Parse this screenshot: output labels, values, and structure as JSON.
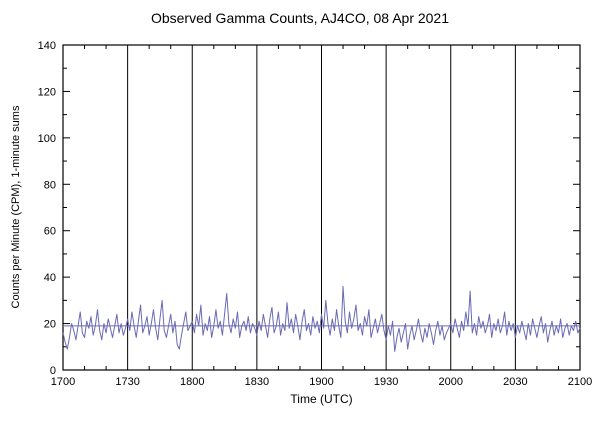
{
  "chart_data": {
    "type": "line",
    "title": "Observed Gamma Counts, AJ4CO, 08 Apr 2021",
    "xlabel": "Time (UTC)",
    "ylabel": "Counts per Minute (CPM), 1-minute sums",
    "x_ticks": [
      "1700",
      "1730",
      "1800",
      "1830",
      "1900",
      "1930",
      "2000",
      "2030",
      "2100"
    ],
    "x_minor_step_minutes": 10,
    "x_total_minutes": 240,
    "ylim": [
      0,
      140
    ],
    "y_ticks": [
      0,
      20,
      40,
      60,
      80,
      100,
      120,
      140
    ],
    "y_minor_step": 10,
    "mean_line": 19,
    "line_color": "#6a6ab4",
    "grid_color": "#000000",
    "axis_color": "#000000",
    "background_color": "#ffffff",
    "legend": "none",
    "grid": "vertical-major-only",
    "values": [
      16,
      12,
      9,
      14,
      20,
      17,
      13,
      19,
      25,
      16,
      14,
      21,
      18,
      23,
      15,
      19,
      26,
      17,
      13,
      20,
      16,
      22,
      18,
      14,
      19,
      24,
      16,
      20,
      15,
      18,
      22,
      17,
      25,
      19,
      14,
      21,
      28,
      16,
      19,
      23,
      15,
      20,
      26,
      18,
      13,
      22,
      30,
      17,
      14,
      19,
      24,
      16,
      21,
      11,
      9,
      15,
      20,
      25,
      17,
      19,
      21,
      16,
      24,
      19,
      28,
      15,
      20,
      17,
      23,
      14,
      19,
      26,
      18,
      21,
      15,
      24,
      33,
      20,
      16,
      22,
      18,
      25,
      14,
      19,
      21,
      17,
      23,
      16,
      20,
      18,
      15,
      21,
      17,
      24,
      19,
      14,
      22,
      27,
      16,
      19,
      25,
      15,
      20,
      17,
      29,
      18,
      22,
      16,
      24,
      19,
      13,
      21,
      26,
      17,
      20,
      15,
      23,
      18,
      21,
      16,
      24,
      18,
      30,
      20,
      15,
      22,
      17,
      26,
      19,
      14,
      36,
      21,
      16,
      25,
      18,
      22,
      28,
      17,
      20,
      15,
      23,
      19,
      26,
      14,
      18,
      22,
      16,
      20,
      24,
      17,
      13,
      19,
      15,
      21,
      8,
      14,
      18,
      12,
      16,
      20,
      9,
      15,
      19,
      13,
      17,
      22,
      16,
      12,
      18,
      14,
      20,
      16,
      11,
      17,
      21,
      15,
      19,
      13,
      16,
      18,
      20,
      16,
      22,
      18,
      14,
      21,
      17,
      25,
      19,
      34,
      16,
      20,
      15,
      23,
      18,
      21,
      16,
      19,
      24,
      14,
      20,
      17,
      22,
      16,
      19,
      25,
      15,
      21,
      17,
      20,
      14,
      19,
      16,
      21,
      17,
      13,
      20,
      15,
      22,
      18,
      14,
      19,
      23,
      16,
      20,
      12,
      17,
      21,
      15,
      19,
      16,
      22,
      14,
      18,
      20,
      15,
      19,
      17,
      21,
      16,
      18
    ]
  }
}
